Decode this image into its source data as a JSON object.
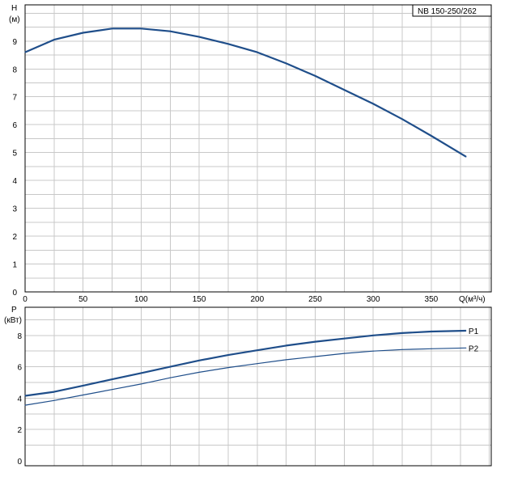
{
  "model_label": "NB 150-250/262",
  "colors": {
    "curve": "#1f4e8a",
    "grid": "#c8c8c8",
    "frame": "#000000"
  },
  "chart_data": [
    {
      "type": "line",
      "ylabel": "H",
      "yunit": "(м)",
      "xlabel": "Q(м³/ч)",
      "xlim": [
        0,
        400
      ],
      "ylim": [
        0,
        10
      ],
      "x_ticks": [
        0,
        50,
        100,
        150,
        200,
        250,
        300,
        350
      ],
      "y_ticks": [
        0,
        1,
        2,
        3,
        4,
        5,
        6,
        7,
        8,
        9
      ],
      "grid": true,
      "series": [
        {
          "name": "",
          "x": [
            0,
            25,
            50,
            75,
            100,
            125,
            150,
            175,
            200,
            225,
            250,
            275,
            300,
            325,
            350,
            380
          ],
          "y": [
            8.6,
            9.05,
            9.3,
            9.45,
            9.45,
            9.35,
            9.15,
            8.9,
            8.6,
            8.2,
            7.75,
            7.25,
            6.75,
            6.2,
            5.6,
            4.85
          ]
        }
      ]
    },
    {
      "type": "line",
      "ylabel": "P",
      "yunit": "(кВт)",
      "xlim": [
        0,
        400
      ],
      "ylim": [
        0,
        10
      ],
      "y_ticks": [
        0,
        2,
        4,
        6,
        8
      ],
      "grid": true,
      "series": [
        {
          "name": "P1",
          "x": [
            0,
            25,
            50,
            75,
            100,
            125,
            150,
            175,
            200,
            225,
            250,
            275,
            300,
            325,
            350,
            380
          ],
          "y": [
            4.15,
            4.4,
            4.8,
            5.2,
            5.6,
            6.0,
            6.4,
            6.75,
            7.05,
            7.35,
            7.6,
            7.8,
            8.0,
            8.15,
            8.25,
            8.3
          ]
        },
        {
          "name": "P2",
          "x": [
            0,
            25,
            50,
            75,
            100,
            125,
            150,
            175,
            200,
            225,
            250,
            275,
            300,
            325,
            350,
            380
          ],
          "y": [
            3.55,
            3.85,
            4.2,
            4.55,
            4.9,
            5.3,
            5.65,
            5.95,
            6.2,
            6.45,
            6.65,
            6.85,
            7.0,
            7.1,
            7.15,
            7.2
          ]
        }
      ]
    }
  ]
}
